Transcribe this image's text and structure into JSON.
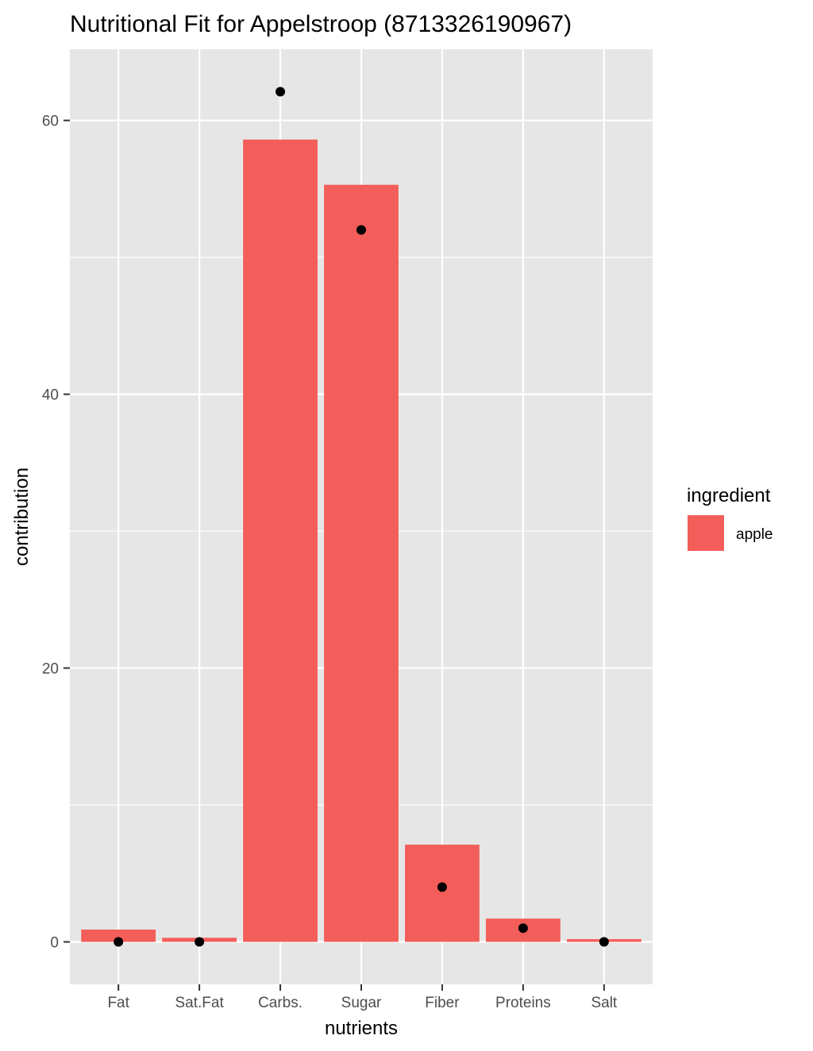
{
  "chart_data": {
    "type": "bar",
    "title": "Nutritional Fit for Appelstroop (8713326190967)",
    "xlabel": "nutrients",
    "ylabel": "contribution",
    "categories": [
      "Fat",
      "Sat.Fat",
      "Carbs.",
      "Sugar",
      "Fiber",
      "Proteins",
      "Salt"
    ],
    "series": [
      {
        "name": "apple",
        "type": "bar",
        "values": [
          0.9,
          0.3,
          58.6,
          55.3,
          7.1,
          1.7,
          0.2
        ]
      }
    ],
    "points": {
      "label": "",
      "values": [
        0.0,
        0.0,
        62.1,
        52.0,
        4.0,
        1.0,
        0.0
      ]
    },
    "ylim": [
      -3.1,
      65.2
    ],
    "y_ticks": [
      0,
      20,
      40,
      60
    ],
    "grid": true,
    "legend": {
      "title": "ingredient",
      "position": "right"
    },
    "colors": {
      "bar": "#F35E5A",
      "point": "#000000",
      "panel": "#E6E6E6",
      "grid": "#FFFFFF"
    }
  }
}
